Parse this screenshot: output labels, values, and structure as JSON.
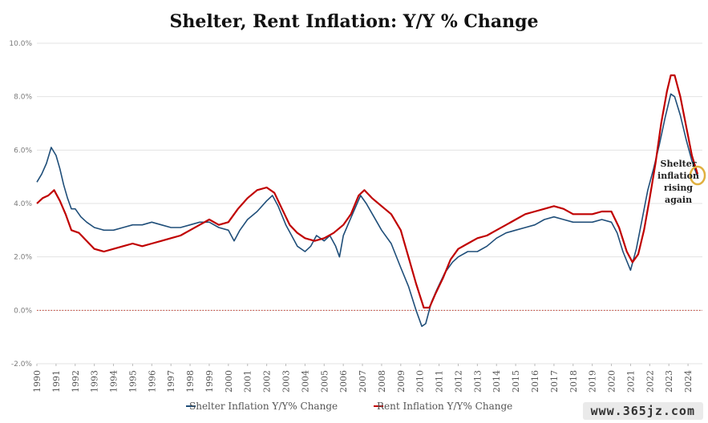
{
  "chart_data": {
    "type": "line",
    "title": "Shelter, Rent Inflation: Y/Y % Change",
    "xlabel": "",
    "ylabel": "",
    "xlim": [
      1990,
      2024.75
    ],
    "ylim": [
      -2.0,
      10.0
    ],
    "yticks": [
      -2,
      0,
      2,
      4,
      6,
      8,
      10
    ],
    "ytick_labels": [
      "-2.0%",
      "0.0%",
      "2.0%",
      "4.0%",
      "6.0%",
      "8.0%",
      "10.0%"
    ],
    "xticks": [
      "1990",
      "1991",
      "1992",
      "1993",
      "1994",
      "1995",
      "1996",
      "1997",
      "1998",
      "1999",
      "2000",
      "2001",
      "2002",
      "2003",
      "2004",
      "2005",
      "2006",
      "2007",
      "2008",
      "2009",
      "2010",
      "2011",
      "2012",
      "2013",
      "2014",
      "2015",
      "2016",
      "2017",
      "2018",
      "2019",
      "2020",
      "2021",
      "2022",
      "2023",
      "2024"
    ],
    "reference_line": {
      "y": 0,
      "style": "dotted",
      "color": "#c0392b"
    },
    "legend_position": "bottom-center",
    "annotation": {
      "text_lines": [
        "Shelter",
        "inflation",
        "rising",
        "again"
      ],
      "x": 2024.5,
      "y": 5.05
    },
    "series": [
      {
        "name": "Shelter Inflation Y/Y% Change",
        "color": "#1f4e79",
        "points": [
          [
            1990.0,
            4.8
          ],
          [
            1990.25,
            5.1
          ],
          [
            1990.5,
            5.5
          ],
          [
            1990.75,
            6.1
          ],
          [
            1991.0,
            5.8
          ],
          [
            1991.2,
            5.3
          ],
          [
            1991.4,
            4.7
          ],
          [
            1991.6,
            4.2
          ],
          [
            1991.8,
            3.8
          ],
          [
            1992.0,
            3.8
          ],
          [
            1992.3,
            3.5
          ],
          [
            1992.6,
            3.3
          ],
          [
            1993.0,
            3.1
          ],
          [
            1993.5,
            3.0
          ],
          [
            1994.0,
            3.0
          ],
          [
            1994.5,
            3.1
          ],
          [
            1995.0,
            3.2
          ],
          [
            1995.5,
            3.2
          ],
          [
            1996.0,
            3.3
          ],
          [
            1996.5,
            3.2
          ],
          [
            1997.0,
            3.1
          ],
          [
            1997.5,
            3.1
          ],
          [
            1998.0,
            3.2
          ],
          [
            1998.5,
            3.3
          ],
          [
            1999.0,
            3.3
          ],
          [
            1999.5,
            3.1
          ],
          [
            2000.0,
            3.0
          ],
          [
            2000.3,
            2.6
          ],
          [
            2000.6,
            3.0
          ],
          [
            2001.0,
            3.4
          ],
          [
            2001.5,
            3.7
          ],
          [
            2002.0,
            4.1
          ],
          [
            2002.3,
            4.3
          ],
          [
            2002.6,
            3.9
          ],
          [
            2003.0,
            3.2
          ],
          [
            2003.3,
            2.8
          ],
          [
            2003.6,
            2.4
          ],
          [
            2004.0,
            2.2
          ],
          [
            2004.3,
            2.4
          ],
          [
            2004.6,
            2.8
          ],
          [
            2005.0,
            2.6
          ],
          [
            2005.3,
            2.8
          ],
          [
            2005.6,
            2.4
          ],
          [
            2005.8,
            2.0
          ],
          [
            2006.0,
            2.8
          ],
          [
            2006.3,
            3.3
          ],
          [
            2006.6,
            3.8
          ],
          [
            2006.9,
            4.3
          ],
          [
            2007.2,
            4.0
          ],
          [
            2007.6,
            3.5
          ],
          [
            2008.0,
            3.0
          ],
          [
            2008.5,
            2.5
          ],
          [
            2009.0,
            1.6
          ],
          [
            2009.4,
            0.9
          ],
          [
            2009.8,
            0.0
          ],
          [
            2010.1,
            -0.6
          ],
          [
            2010.3,
            -0.5
          ],
          [
            2010.6,
            0.3
          ],
          [
            2010.9,
            0.8
          ],
          [
            2011.3,
            1.4
          ],
          [
            2011.7,
            1.8
          ],
          [
            2012.0,
            2.0
          ],
          [
            2012.5,
            2.2
          ],
          [
            2013.0,
            2.2
          ],
          [
            2013.5,
            2.4
          ],
          [
            2014.0,
            2.7
          ],
          [
            2014.5,
            2.9
          ],
          [
            2015.0,
            3.0
          ],
          [
            2015.5,
            3.1
          ],
          [
            2016.0,
            3.2
          ],
          [
            2016.5,
            3.4
          ],
          [
            2017.0,
            3.5
          ],
          [
            2017.5,
            3.4
          ],
          [
            2018.0,
            3.3
          ],
          [
            2018.5,
            3.3
          ],
          [
            2019.0,
            3.3
          ],
          [
            2019.5,
            3.4
          ],
          [
            2020.0,
            3.3
          ],
          [
            2020.3,
            2.9
          ],
          [
            2020.6,
            2.2
          ],
          [
            2021.0,
            1.5
          ],
          [
            2021.3,
            2.3
          ],
          [
            2021.6,
            3.4
          ],
          [
            2021.9,
            4.5
          ],
          [
            2022.2,
            5.3
          ],
          [
            2022.5,
            6.2
          ],
          [
            2022.8,
            7.2
          ],
          [
            2023.1,
            8.1
          ],
          [
            2023.3,
            8.0
          ],
          [
            2023.6,
            7.3
          ],
          [
            2023.9,
            6.4
          ],
          [
            2024.2,
            5.6
          ],
          [
            2024.5,
            5.0
          ]
        ]
      },
      {
        "name": "Rent Inflation Y/Y% Change",
        "color": "#c00000",
        "points": [
          [
            1990.0,
            4.0
          ],
          [
            1990.3,
            4.2
          ],
          [
            1990.6,
            4.3
          ],
          [
            1990.9,
            4.5
          ],
          [
            1991.2,
            4.1
          ],
          [
            1991.5,
            3.6
          ],
          [
            1991.8,
            3.0
          ],
          [
            1992.2,
            2.9
          ],
          [
            1992.6,
            2.6
          ],
          [
            1993.0,
            2.3
          ],
          [
            1993.5,
            2.2
          ],
          [
            1994.0,
            2.3
          ],
          [
            1994.5,
            2.4
          ],
          [
            1995.0,
            2.5
          ],
          [
            1995.5,
            2.4
          ],
          [
            1996.0,
            2.5
          ],
          [
            1996.5,
            2.6
          ],
          [
            1997.0,
            2.7
          ],
          [
            1997.5,
            2.8
          ],
          [
            1998.0,
            3.0
          ],
          [
            1998.5,
            3.2
          ],
          [
            1999.0,
            3.4
          ],
          [
            1999.5,
            3.2
          ],
          [
            2000.0,
            3.3
          ],
          [
            2000.5,
            3.8
          ],
          [
            2001.0,
            4.2
          ],
          [
            2001.5,
            4.5
          ],
          [
            2002.0,
            4.6
          ],
          [
            2002.4,
            4.4
          ],
          [
            2002.8,
            3.8
          ],
          [
            2003.2,
            3.2
          ],
          [
            2003.6,
            2.9
          ],
          [
            2004.0,
            2.7
          ],
          [
            2004.5,
            2.6
          ],
          [
            2005.0,
            2.7
          ],
          [
            2005.5,
            2.9
          ],
          [
            2006.0,
            3.2
          ],
          [
            2006.4,
            3.6
          ],
          [
            2006.8,
            4.3
          ],
          [
            2007.1,
            4.5
          ],
          [
            2007.5,
            4.2
          ],
          [
            2008.0,
            3.9
          ],
          [
            2008.5,
            3.6
          ],
          [
            2009.0,
            3.0
          ],
          [
            2009.4,
            2.0
          ],
          [
            2009.8,
            1.0
          ],
          [
            2010.2,
            0.1
          ],
          [
            2010.5,
            0.1
          ],
          [
            2010.8,
            0.6
          ],
          [
            2011.2,
            1.2
          ],
          [
            2011.6,
            1.9
          ],
          [
            2012.0,
            2.3
          ],
          [
            2012.5,
            2.5
          ],
          [
            2013.0,
            2.7
          ],
          [
            2013.5,
            2.8
          ],
          [
            2014.0,
            3.0
          ],
          [
            2014.5,
            3.2
          ],
          [
            2015.0,
            3.4
          ],
          [
            2015.5,
            3.6
          ],
          [
            2016.0,
            3.7
          ],
          [
            2016.5,
            3.8
          ],
          [
            2017.0,
            3.9
          ],
          [
            2017.5,
            3.8
          ],
          [
            2018.0,
            3.6
          ],
          [
            2018.5,
            3.6
          ],
          [
            2019.0,
            3.6
          ],
          [
            2019.5,
            3.7
          ],
          [
            2020.0,
            3.7
          ],
          [
            2020.4,
            3.1
          ],
          [
            2020.8,
            2.2
          ],
          [
            2021.1,
            1.8
          ],
          [
            2021.4,
            2.1
          ],
          [
            2021.7,
            3.0
          ],
          [
            2022.0,
            4.2
          ],
          [
            2022.3,
            5.5
          ],
          [
            2022.6,
            7.0
          ],
          [
            2022.9,
            8.2
          ],
          [
            2023.1,
            8.8
          ],
          [
            2023.3,
            8.8
          ],
          [
            2023.6,
            8.0
          ],
          [
            2023.9,
            6.9
          ],
          [
            2024.2,
            5.8
          ],
          [
            2024.5,
            5.1
          ]
        ]
      }
    ]
  },
  "watermark": "www.365jz.com"
}
